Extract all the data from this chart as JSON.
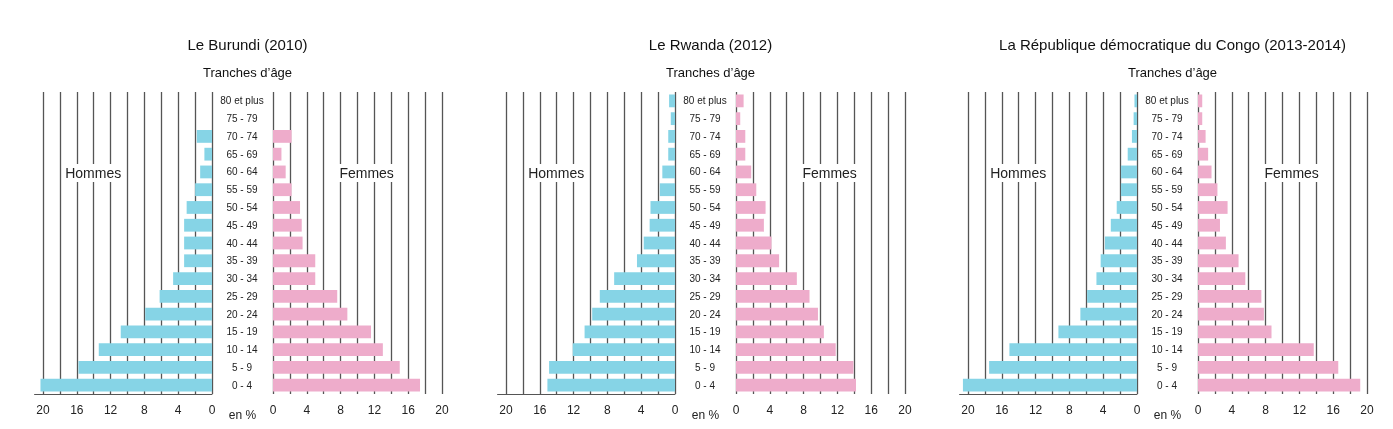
{
  "chart_data": [
    {
      "type": "bar",
      "orientation": "horizontal",
      "title": "Le Burundi (2010)",
      "subtitle": "Tranches d’âge",
      "xlabel": "en %",
      "categories": [
        "80 et plus",
        "75 - 79",
        "70 - 74",
        "65 - 69",
        "60 - 64",
        "55 - 59",
        "50 - 54",
        "45 - 49",
        "40 - 44",
        "35 - 39",
        "30 - 34",
        "25 - 29",
        "20 - 24",
        "15 - 19",
        "10 - 14",
        "5 - 9",
        "0 - 4"
      ],
      "series": [
        {
          "name": "Hommes",
          "color": "#86d4e6",
          "values": [
            null,
            null,
            1.8,
            0.9,
            1.4,
            2.0,
            3.0,
            3.3,
            3.3,
            3.3,
            4.6,
            6.2,
            7.9,
            10.8,
            13.4,
            15.8,
            20.3
          ]
        }
      ],
      "xlim": [
        21,
        0
      ],
      "xticks": [
        20,
        {
          "value": 18,
          "label": null
        },
        16,
        {
          "value": 14,
          "label": null
        },
        12,
        {
          "value": 10,
          "label": null
        },
        8,
        {
          "value": 6,
          "label": null
        },
        4,
        {
          "value": 2,
          "label": null
        },
        0
      ],
      "grid": "x"
    },
    {
      "type": "bar",
      "orientation": "horizontal",
      "categories": [
        null,
        null,
        null,
        null,
        null,
        null,
        null,
        null,
        null,
        null,
        null,
        null,
        null,
        null,
        null,
        null,
        null
      ],
      "tick_labels": "x",
      "series": [
        {
          "name": "Femmes",
          "color": "#eeaccb",
          "values": [
            null,
            null,
            2.2,
            1.0,
            1.5,
            2.2,
            3.2,
            3.4,
            3.5,
            5.0,
            5.0,
            7.6,
            8.8,
            11.6,
            13.0,
            15.0,
            17.4
          ]
        }
      ],
      "xlim": [
        0,
        20
      ],
      "xticks": [
        0,
        {
          "value": 2,
          "label": null
        },
        4,
        {
          "value": 6,
          "label": null
        },
        8,
        {
          "value": 10,
          "label": null
        },
        12,
        {
          "value": 14,
          "label": null
        },
        16,
        {
          "value": 18,
          "label": null
        },
        20
      ],
      "grid": "x"
    },
    {
      "type": "bar",
      "orientation": "horizontal",
      "title": "Le Rwanda (2012)",
      "subtitle": "Tranches d’âge",
      "xlabel": "en %",
      "categories": [
        "80 et plus",
        "75 - 79",
        "70 - 74",
        "65 - 69",
        "60 - 64",
        "55 - 59",
        "50 - 54",
        "45 - 49",
        "40 - 44",
        "35 - 39",
        "30 - 34",
        "25 - 29",
        "20 - 24",
        "15 - 19",
        "10 - 14",
        "5 - 9",
        "0 - 4"
      ],
      "series": [
        {
          "name": "Hommes",
          "color": "#86d4e6",
          "values": [
            0.7,
            0.5,
            0.8,
            0.8,
            1.5,
            1.8,
            2.9,
            3.0,
            3.7,
            4.5,
            7.2,
            8.9,
            9.8,
            10.7,
            12.1,
            14.9,
            15.1
          ]
        }
      ],
      "xlim": [
        21,
        0
      ],
      "xticks": [
        20,
        {
          "value": 18,
          "label": null
        },
        16,
        {
          "value": 14,
          "label": null
        },
        12,
        {
          "value": 10,
          "label": null
        },
        8,
        {
          "value": 6,
          "label": null
        },
        4,
        {
          "value": 2,
          "label": null
        },
        0
      ],
      "grid": "x"
    },
    {
      "type": "bar",
      "orientation": "horizontal",
      "categories": [
        null,
        null,
        null,
        null,
        null,
        null,
        null,
        null,
        null,
        null,
        null,
        null,
        null,
        null,
        null,
        null,
        null
      ],
      "tick_labels": "x",
      "series": [
        {
          "name": "Femmes",
          "color": "#eeaccb",
          "values": [
            0.9,
            0.5,
            1.1,
            1.1,
            1.8,
            2.4,
            3.5,
            3.3,
            4.2,
            5.1,
            7.2,
            8.7,
            9.7,
            10.4,
            11.8,
            13.9,
            14.2
          ]
        }
      ],
      "xlim": [
        0,
        20
      ],
      "xticks": [
        0,
        {
          "value": 2,
          "label": null
        },
        4,
        {
          "value": 6,
          "label": null
        },
        8,
        {
          "value": 10,
          "label": null
        },
        12,
        {
          "value": 14,
          "label": null
        },
        16,
        {
          "value": 18,
          "label": null
        },
        20
      ],
      "grid": "x"
    },
    {
      "type": "bar",
      "orientation": "horizontal",
      "title": "La République démocratique du Congo (2013-2014)",
      "subtitle": "Tranches d’âge",
      "xlabel": "en %",
      "categories": [
        "80 et plus",
        "75 - 79",
        "70 - 74",
        "65 - 69",
        "60 - 64",
        "55 - 59",
        "50 - 54",
        "45 - 49",
        "40 - 44",
        "35 - 39",
        "30 - 34",
        "25 - 29",
        "20 - 24",
        "15 - 19",
        "10 - 14",
        "5 - 9",
        "0 - 4"
      ],
      "series": [
        {
          "name": "Hommes",
          "color": "#86d4e6",
          "values": [
            0.3,
            0.4,
            0.6,
            1.1,
            1.9,
            1.9,
            2.4,
            3.1,
            3.8,
            4.3,
            4.8,
            5.9,
            6.7,
            9.3,
            15.1,
            17.5,
            20.6
          ]
        }
      ],
      "xlim": [
        21,
        0
      ],
      "xticks": [
        20,
        {
          "value": 18,
          "label": null
        },
        16,
        {
          "value": 14,
          "label": null
        },
        12,
        {
          "value": 10,
          "label": null
        },
        8,
        {
          "value": 6,
          "label": null
        },
        4,
        {
          "value": 2,
          "label": null
        },
        0
      ],
      "grid": "x"
    },
    {
      "type": "bar",
      "orientation": "horizontal",
      "categories": [
        null,
        null,
        null,
        null,
        null,
        null,
        null,
        null,
        null,
        null,
        null,
        null,
        null,
        null,
        null,
        null,
        null
      ],
      "tick_labels": "x",
      "series": [
        {
          "name": "Femmes",
          "color": "#eeaccb",
          "values": [
            0.5,
            0.5,
            0.9,
            1.2,
            1.6,
            2.3,
            3.5,
            2.6,
            3.3,
            4.8,
            5.6,
            7.5,
            7.8,
            8.7,
            13.7,
            16.6,
            19.2
          ]
        }
      ],
      "xlim": [
        0,
        20
      ],
      "xticks": [
        0,
        {
          "value": 2,
          "label": null
        },
        4,
        {
          "value": 6,
          "label": null
        },
        8,
        {
          "value": 10,
          "label": null
        },
        12,
        {
          "value": 14,
          "label": null
        },
        16,
        {
          "value": 18,
          "label": null
        },
        20
      ],
      "grid": "x"
    }
  ]
}
